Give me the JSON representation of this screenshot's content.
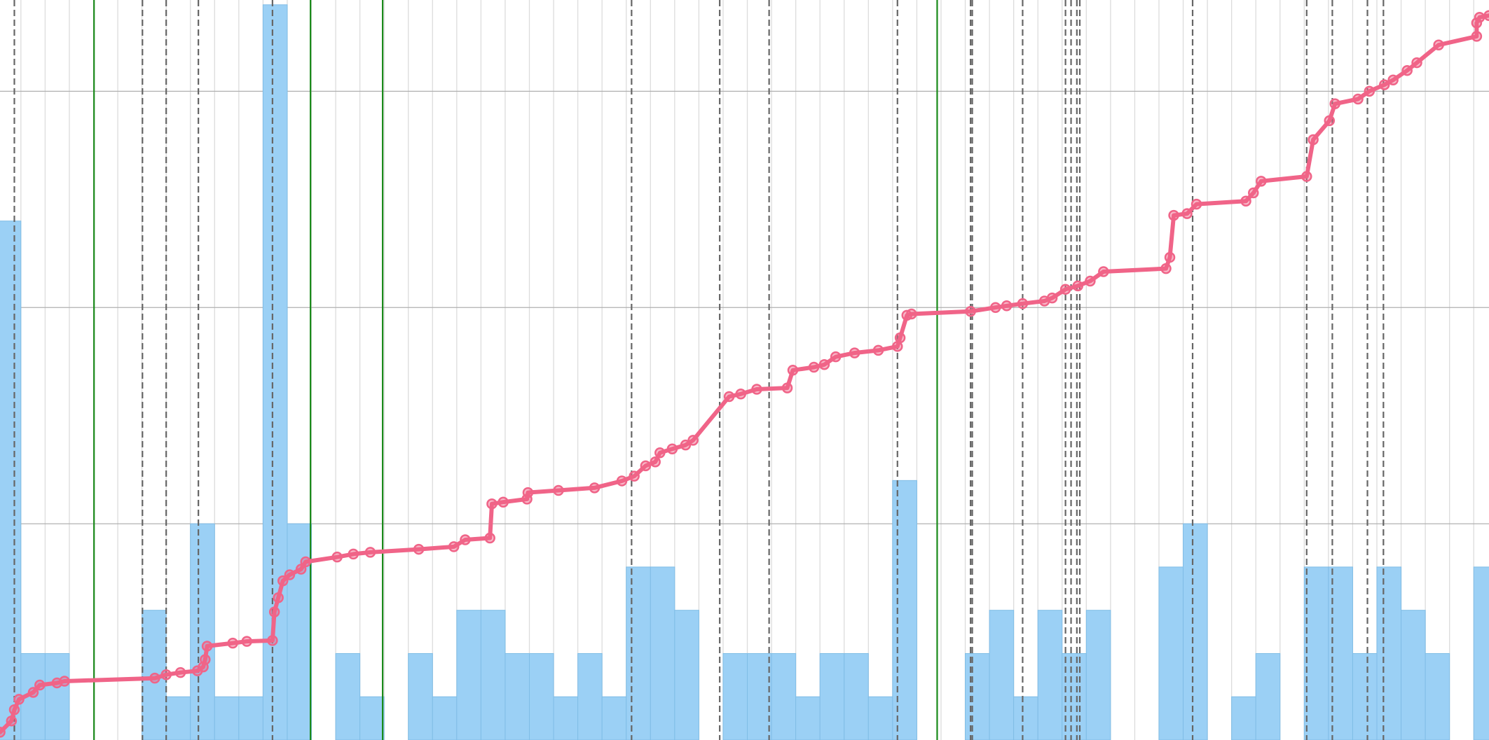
{
  "chart_data": {
    "type": "histogram",
    "xlim": [
      0.137,
      61.63
    ],
    "ylim": [
      0,
      17.11
    ],
    "xticks": [
      1,
      2,
      3,
      4,
      5,
      6,
      7,
      8,
      9,
      10,
      11,
      12,
      13,
      14,
      15,
      16,
      17,
      18,
      19,
      20,
      21,
      22,
      23,
      24,
      25,
      26,
      27,
      28,
      29,
      30,
      31,
      32,
      33,
      34,
      35,
      36,
      37,
      38,
      39,
      40,
      41,
      42,
      43,
      44,
      45,
      46,
      47,
      48,
      49,
      50,
      51,
      52,
      53,
      54,
      55,
      56,
      57,
      58,
      59,
      60,
      61
    ],
    "yticks": [
      5,
      10,
      15
    ],
    "grid": true,
    "color": "#9bd0f5",
    "bins": [
      0,
      1,
      2,
      3,
      4,
      5,
      6,
      7,
      8,
      9,
      10,
      11,
      12,
      13,
      14,
      15,
      16,
      17,
      18,
      19,
      20,
      21,
      22,
      23,
      24,
      25,
      26,
      27,
      28,
      29,
      30,
      31,
      32,
      33,
      34,
      35,
      36,
      37,
      38,
      39,
      40,
      41,
      42,
      43,
      44,
      45,
      46,
      47,
      48,
      49,
      50,
      51,
      52,
      53,
      54,
      55,
      56,
      57,
      58,
      59,
      60,
      61,
      62
    ],
    "values": [
      12,
      2,
      2,
      0,
      0,
      0,
      3,
      1,
      5,
      1,
      1,
      17,
      5,
      0,
      2,
      1,
      0,
      2,
      1,
      3,
      3,
      2,
      2,
      1,
      2,
      1,
      4,
      4,
      3,
      0,
      2,
      2,
      2,
      1,
      2,
      2,
      1,
      6,
      0,
      0,
      2,
      3,
      1,
      3,
      2,
      3,
      0,
      0,
      4,
      5,
      0,
      1,
      2,
      0,
      4,
      4,
      2,
      4,
      3,
      2,
      0,
      4
    ],
    "line": {
      "color": "#f06488",
      "x": [
        0.14,
        0.61,
        0.73,
        0.92,
        1.51,
        1.78,
        2.49,
        2.8,
        6.53,
        7.0,
        7.59,
        8.29,
        8.53,
        8.61,
        8.69,
        9.75,
        10.33,
        11.39,
        11.47,
        11.63,
        11.82,
        12.1,
        12.57,
        12.76,
        14.06,
        14.73,
        15.43,
        17.43,
        18.88,
        19.35,
        20.37,
        20.45,
        20.92,
        21.9,
        21.94,
        23.2,
        24.69,
        25.82,
        26.33,
        26.8,
        27.2,
        27.39,
        27.9,
        28.45,
        28.76,
        30.25,
        30.73,
        31.39,
        32.65,
        32.88,
        33.75,
        34.18,
        34.65,
        35.43,
        36.41,
        37.2,
        37.31,
        37.59,
        37.78,
        40.22,
        41.25,
        41.71,
        42.37,
        43.27,
        43.59,
        44.14,
        44.65,
        45.16,
        45.71,
        48.29,
        48.45,
        48.61,
        49.16,
        49.55,
        51.59,
        51.9,
        52.22,
        54.1,
        54.37,
        55.04,
        55.27,
        56.22,
        56.69,
        57.31,
        57.67,
        58.25,
        58.65,
        59.55,
        61.12,
        61.12,
        61.24,
        61.63
      ],
      "y": [
        0.18,
        0.44,
        0.7,
        0.94,
        1.1,
        1.27,
        1.32,
        1.36,
        1.43,
        1.51,
        1.56,
        1.6,
        1.69,
        1.86,
        2.17,
        2.24,
        2.28,
        2.3,
        2.96,
        3.29,
        3.68,
        3.82,
        3.95,
        4.12,
        4.23,
        4.3,
        4.34,
        4.41,
        4.47,
        4.63,
        4.67,
        5.46,
        5.5,
        5.57,
        5.72,
        5.77,
        5.83,
        5.99,
        6.1,
        6.34,
        6.43,
        6.64,
        6.73,
        6.82,
        6.93,
        7.94,
        8.0,
        8.11,
        8.14,
        8.55,
        8.62,
        8.68,
        8.86,
        8.95,
        9.01,
        9.1,
        9.3,
        9.82,
        9.85,
        9.91,
        10.0,
        10.04,
        10.09,
        10.15,
        10.22,
        10.42,
        10.5,
        10.61,
        10.83,
        10.9,
        11.16,
        12.13,
        12.17,
        12.39,
        12.46,
        12.65,
        12.92,
        13.03,
        13.88,
        14.32,
        14.71,
        14.82,
        15.0,
        15.15,
        15.26,
        15.48,
        15.66,
        16.07,
        16.27,
        16.58,
        16.71,
        16.75
      ]
    },
    "dashed_lines": {
      "color": "#666666",
      "x": [
        0.73,
        6.02,
        7.0,
        8.33,
        11.39,
        26.22,
        29.86,
        31.9,
        37.2,
        40.22,
        40.29,
        42.37,
        44.14,
        44.37,
        44.61,
        44.73,
        49.39,
        54.1,
        55.16,
        56.61,
        57.27
      ]
    },
    "solid_lines": {
      "color": "#1a8a1a",
      "x": [
        4.02,
        12.96,
        15.94,
        38.84
      ]
    }
  }
}
